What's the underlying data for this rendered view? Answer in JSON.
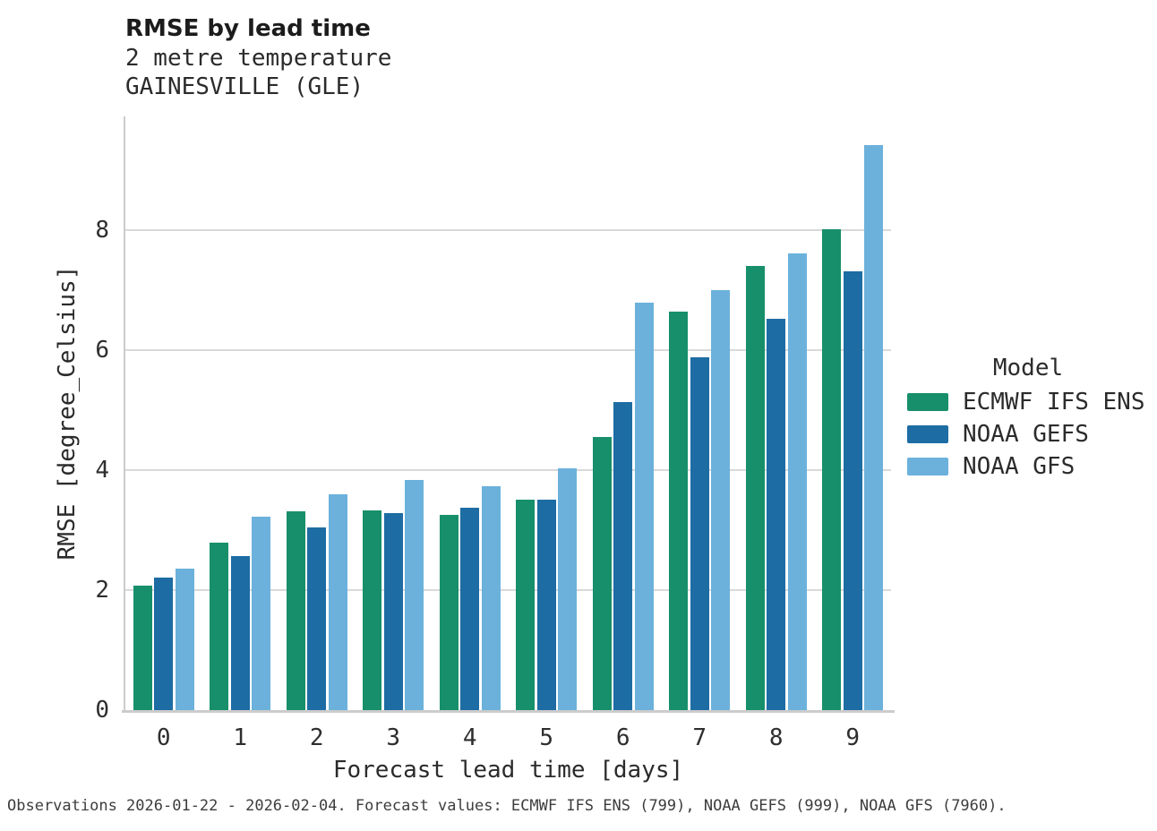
{
  "header": {
    "title": "RMSE by lead time",
    "subtitle_line1": "2 metre temperature",
    "subtitle_line2": "GAINESVILLE (GLE)"
  },
  "legend": {
    "title": "Model"
  },
  "footnote": "Observations 2026-01-22 - 2026-02-04. Forecast values: ECMWF IFS ENS (799), NOAA GEFS (999), NOAA GFS (7960).",
  "chart_data": {
    "type": "bar",
    "title": "RMSE by lead time",
    "subtitle": [
      "2 metre temperature",
      "GAINESVILLE (GLE)"
    ],
    "categories": [
      "0",
      "1",
      "2",
      "3",
      "4",
      "5",
      "6",
      "7",
      "8",
      "9"
    ],
    "series": [
      {
        "name": "ECMWF IFS ENS",
        "color": "#178f6a",
        "values": [
          2.08,
          2.8,
          3.32,
          3.33,
          3.25,
          3.51,
          4.55,
          6.65,
          7.4,
          8.02
        ]
      },
      {
        "name": "NOAA GEFS",
        "color": "#1d6ca3",
        "values": [
          2.21,
          2.57,
          3.04,
          3.28,
          3.38,
          3.51,
          5.14,
          5.88,
          6.52,
          7.32
        ]
      },
      {
        "name": "NOAA GFS",
        "color": "#6bb1db",
        "values": [
          2.36,
          3.23,
          3.6,
          3.84,
          3.74,
          4.03,
          6.8,
          7.0,
          7.61,
          9.42
        ]
      }
    ],
    "xlabel": "Forecast lead time [days]",
    "ylabel": "RMSE [degree_Celsius]",
    "ylim": [
      0,
      9.9
    ],
    "yticks": [
      0,
      2,
      4,
      6,
      8
    ],
    "grid": "horizontal",
    "legend_position": "right",
    "colors": {
      "gridline": "#d9d9d9",
      "spine": "#cccccc",
      "background": "#ffffff"
    }
  }
}
